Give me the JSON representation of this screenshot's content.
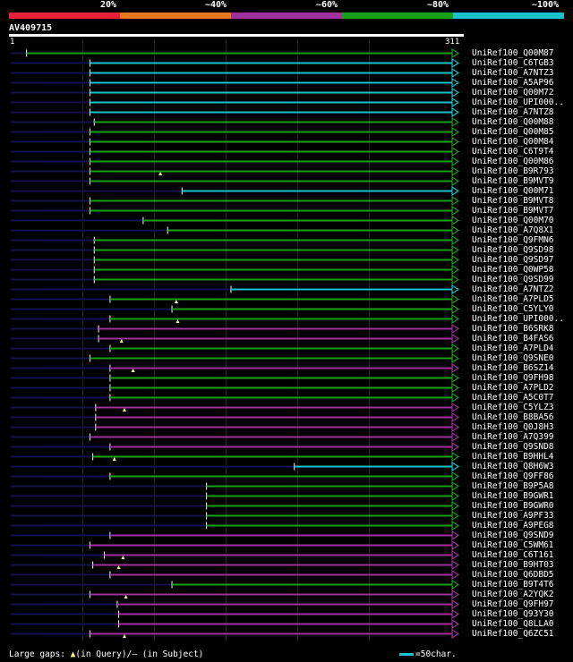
{
  "legend": {
    "segments": [
      {
        "color": "#e8213a"
      },
      {
        "color": "#e8781e"
      },
      {
        "color": "#a0309e"
      },
      {
        "color": "#18a018"
      },
      {
        "color": "#18c2c8"
      }
    ],
    "labels": [
      "20%",
      "~40%",
      "~60%",
      "~80%",
      "~100%"
    ]
  },
  "query": {
    "title": "AV409715",
    "start": "1",
    "end": "311",
    "length": 311
  },
  "colors": {
    "green": "#18a018",
    "cyan": "#18c2c8",
    "purple": "#a0309e",
    "navy": "#14144a",
    "marker": "#ffff80"
  },
  "hits": [
    {
      "name": "UniRef100_Q00M87",
      "start": 12,
      "color": "green",
      "markers": []
    },
    {
      "name": "UniRef100_C6TGB3",
      "start": 56,
      "color": "cyan",
      "markers": []
    },
    {
      "name": "UniRef100_A7NTZ3",
      "start": 56,
      "color": "cyan",
      "markers": []
    },
    {
      "name": "UniRef100_A5AP96",
      "start": 56,
      "color": "cyan",
      "markers": []
    },
    {
      "name": "UniRef100_Q00M72",
      "start": 56,
      "color": "cyan",
      "markers": []
    },
    {
      "name": "UniRef100_UPI000..",
      "start": 56,
      "color": "cyan",
      "markers": []
    },
    {
      "name": "UniRef100_A7NTZ8",
      "start": 56,
      "color": "cyan",
      "markers": []
    },
    {
      "name": "UniRef100_Q00M88",
      "start": 59,
      "color": "green",
      "markers": []
    },
    {
      "name": "UniRef100_Q00M85",
      "start": 56,
      "color": "green",
      "markers": []
    },
    {
      "name": "UniRef100_Q00M84",
      "start": 56,
      "color": "green",
      "markers": []
    },
    {
      "name": "UniRef100_C6T9T4",
      "start": 56,
      "color": "green",
      "markers": []
    },
    {
      "name": "UniRef100_Q00M86",
      "start": 56,
      "color": "green",
      "markers": []
    },
    {
      "name": "UniRef100_B9R793",
      "start": 56,
      "color": "green",
      "markers": [
        105
      ]
    },
    {
      "name": "UniRef100_B9MVT9",
      "start": 56,
      "color": "green",
      "markers": []
    },
    {
      "name": "UniRef100_Q00M71",
      "start": 120,
      "color": "cyan",
      "markers": []
    },
    {
      "name": "UniRef100_B9MVT8",
      "start": 56,
      "color": "green",
      "markers": []
    },
    {
      "name": "UniRef100_B9MVT7",
      "start": 56,
      "color": "green",
      "markers": []
    },
    {
      "name": "UniRef100_Q00M70",
      "start": 93,
      "color": "green",
      "markers": []
    },
    {
      "name": "UniRef100_A7Q8X1",
      "start": 110,
      "color": "green",
      "markers": []
    },
    {
      "name": "UniRef100_Q9FMN6",
      "start": 59,
      "color": "green",
      "markers": []
    },
    {
      "name": "UniRef100_Q9SD98",
      "start": 59,
      "color": "green",
      "markers": []
    },
    {
      "name": "UniRef100_Q9SD97",
      "start": 59,
      "color": "green",
      "markers": []
    },
    {
      "name": "UniRef100_Q0WP58",
      "start": 59,
      "color": "green",
      "markers": []
    },
    {
      "name": "UniRef100_Q9SD99",
      "start": 59,
      "color": "green",
      "markers": []
    },
    {
      "name": "UniRef100_A7NTZ2",
      "start": 154,
      "color": "cyan",
      "markers": []
    },
    {
      "name": "UniRef100_A7PLD5",
      "start": 70,
      "color": "green",
      "markers": [
        116
      ]
    },
    {
      "name": "UniRef100_C5YLY0",
      "start": 113,
      "color": "green",
      "markers": []
    },
    {
      "name": "UniRef100_UPI000..",
      "start": 70,
      "color": "green",
      "markers": [
        117
      ]
    },
    {
      "name": "UniRef100_B6SRK8",
      "start": 62,
      "color": "purple",
      "markers": []
    },
    {
      "name": "UniRef100_B4FAS6",
      "start": 62,
      "color": "purple",
      "markers": [
        78
      ]
    },
    {
      "name": "UniRef100_A7PLD4",
      "start": 70,
      "color": "green",
      "markers": []
    },
    {
      "name": "UniRef100_Q9SNE0",
      "start": 56,
      "color": "green",
      "markers": []
    },
    {
      "name": "UniRef100_B6SZ14",
      "start": 70,
      "color": "purple",
      "markers": [
        86
      ]
    },
    {
      "name": "UniRef100_Q9FH98",
      "start": 70,
      "color": "green",
      "markers": []
    },
    {
      "name": "UniRef100_A7PLD2",
      "start": 70,
      "color": "green",
      "markers": []
    },
    {
      "name": "UniRef100_A5C0T7",
      "start": 70,
      "color": "green",
      "markers": []
    },
    {
      "name": "UniRef100_C5YLZ3",
      "start": 60,
      "color": "purple",
      "markers": [
        80
      ]
    },
    {
      "name": "UniRef100_B8BA56",
      "start": 60,
      "color": "purple",
      "markers": []
    },
    {
      "name": "UniRef100_Q0J8H3",
      "start": 60,
      "color": "purple",
      "markers": []
    },
    {
      "name": "UniRef100_A7Q399",
      "start": 56,
      "color": "purple",
      "markers": []
    },
    {
      "name": "UniRef100_Q9SND8",
      "start": 70,
      "color": "purple",
      "markers": []
    },
    {
      "name": "UniRef100_B9HHL4",
      "start": 58,
      "color": "green",
      "markers": [
        73
      ]
    },
    {
      "name": "UniRef100_Q8H6W3",
      "start": 198,
      "color": "cyan",
      "markers": []
    },
    {
      "name": "UniRef100_Q9FF86",
      "start": 70,
      "color": "green",
      "markers": []
    },
    {
      "name": "UniRef100_B9P5A8",
      "start": 137,
      "color": "green",
      "markers": []
    },
    {
      "name": "UniRef100_B9GWR1",
      "start": 137,
      "color": "green",
      "markers": []
    },
    {
      "name": "UniRef100_B9GWR0",
      "start": 137,
      "color": "green",
      "markers": []
    },
    {
      "name": "UniRef100_A9PF33",
      "start": 137,
      "color": "green",
      "markers": []
    },
    {
      "name": "UniRef100_A9PEG8",
      "start": 137,
      "color": "green",
      "markers": []
    },
    {
      "name": "UniRef100_Q9SND9",
      "start": 70,
      "color": "purple",
      "markers": []
    },
    {
      "name": "UniRef100_C5WM61",
      "start": 56,
      "color": "purple",
      "markers": []
    },
    {
      "name": "UniRef100_C6T161",
      "start": 66,
      "color": "purple",
      "markers": [
        79
      ]
    },
    {
      "name": "UniRef100_B9HT03",
      "start": 58,
      "color": "purple",
      "markers": [
        76
      ]
    },
    {
      "name": "UniRef100_Q6DBD5",
      "start": 70,
      "color": "purple",
      "markers": []
    },
    {
      "name": "UniRef100_B9T4T6",
      "start": 113,
      "color": "green",
      "markers": []
    },
    {
      "name": "UniRef100_A2YQK2",
      "start": 56,
      "color": "purple",
      "markers": [
        81
      ]
    },
    {
      "name": "UniRef100_Q9FH97",
      "start": 75,
      "color": "purple",
      "markers": []
    },
    {
      "name": "UniRef100_Q93Y30",
      "start": 76,
      "color": "purple",
      "markers": []
    },
    {
      "name": "UniRef100_Q8LLA0",
      "start": 76,
      "color": "purple",
      "markers": []
    },
    {
      "name": "UniRef100_Q6ZC51",
      "start": 56,
      "color": "purple",
      "markers": [
        80
      ]
    }
  ],
  "footer": {
    "large_gaps": "Large gaps:",
    "in_query": "(in Query)/",
    "in_subject": "– (in Subject)",
    "scale": "=50char."
  }
}
